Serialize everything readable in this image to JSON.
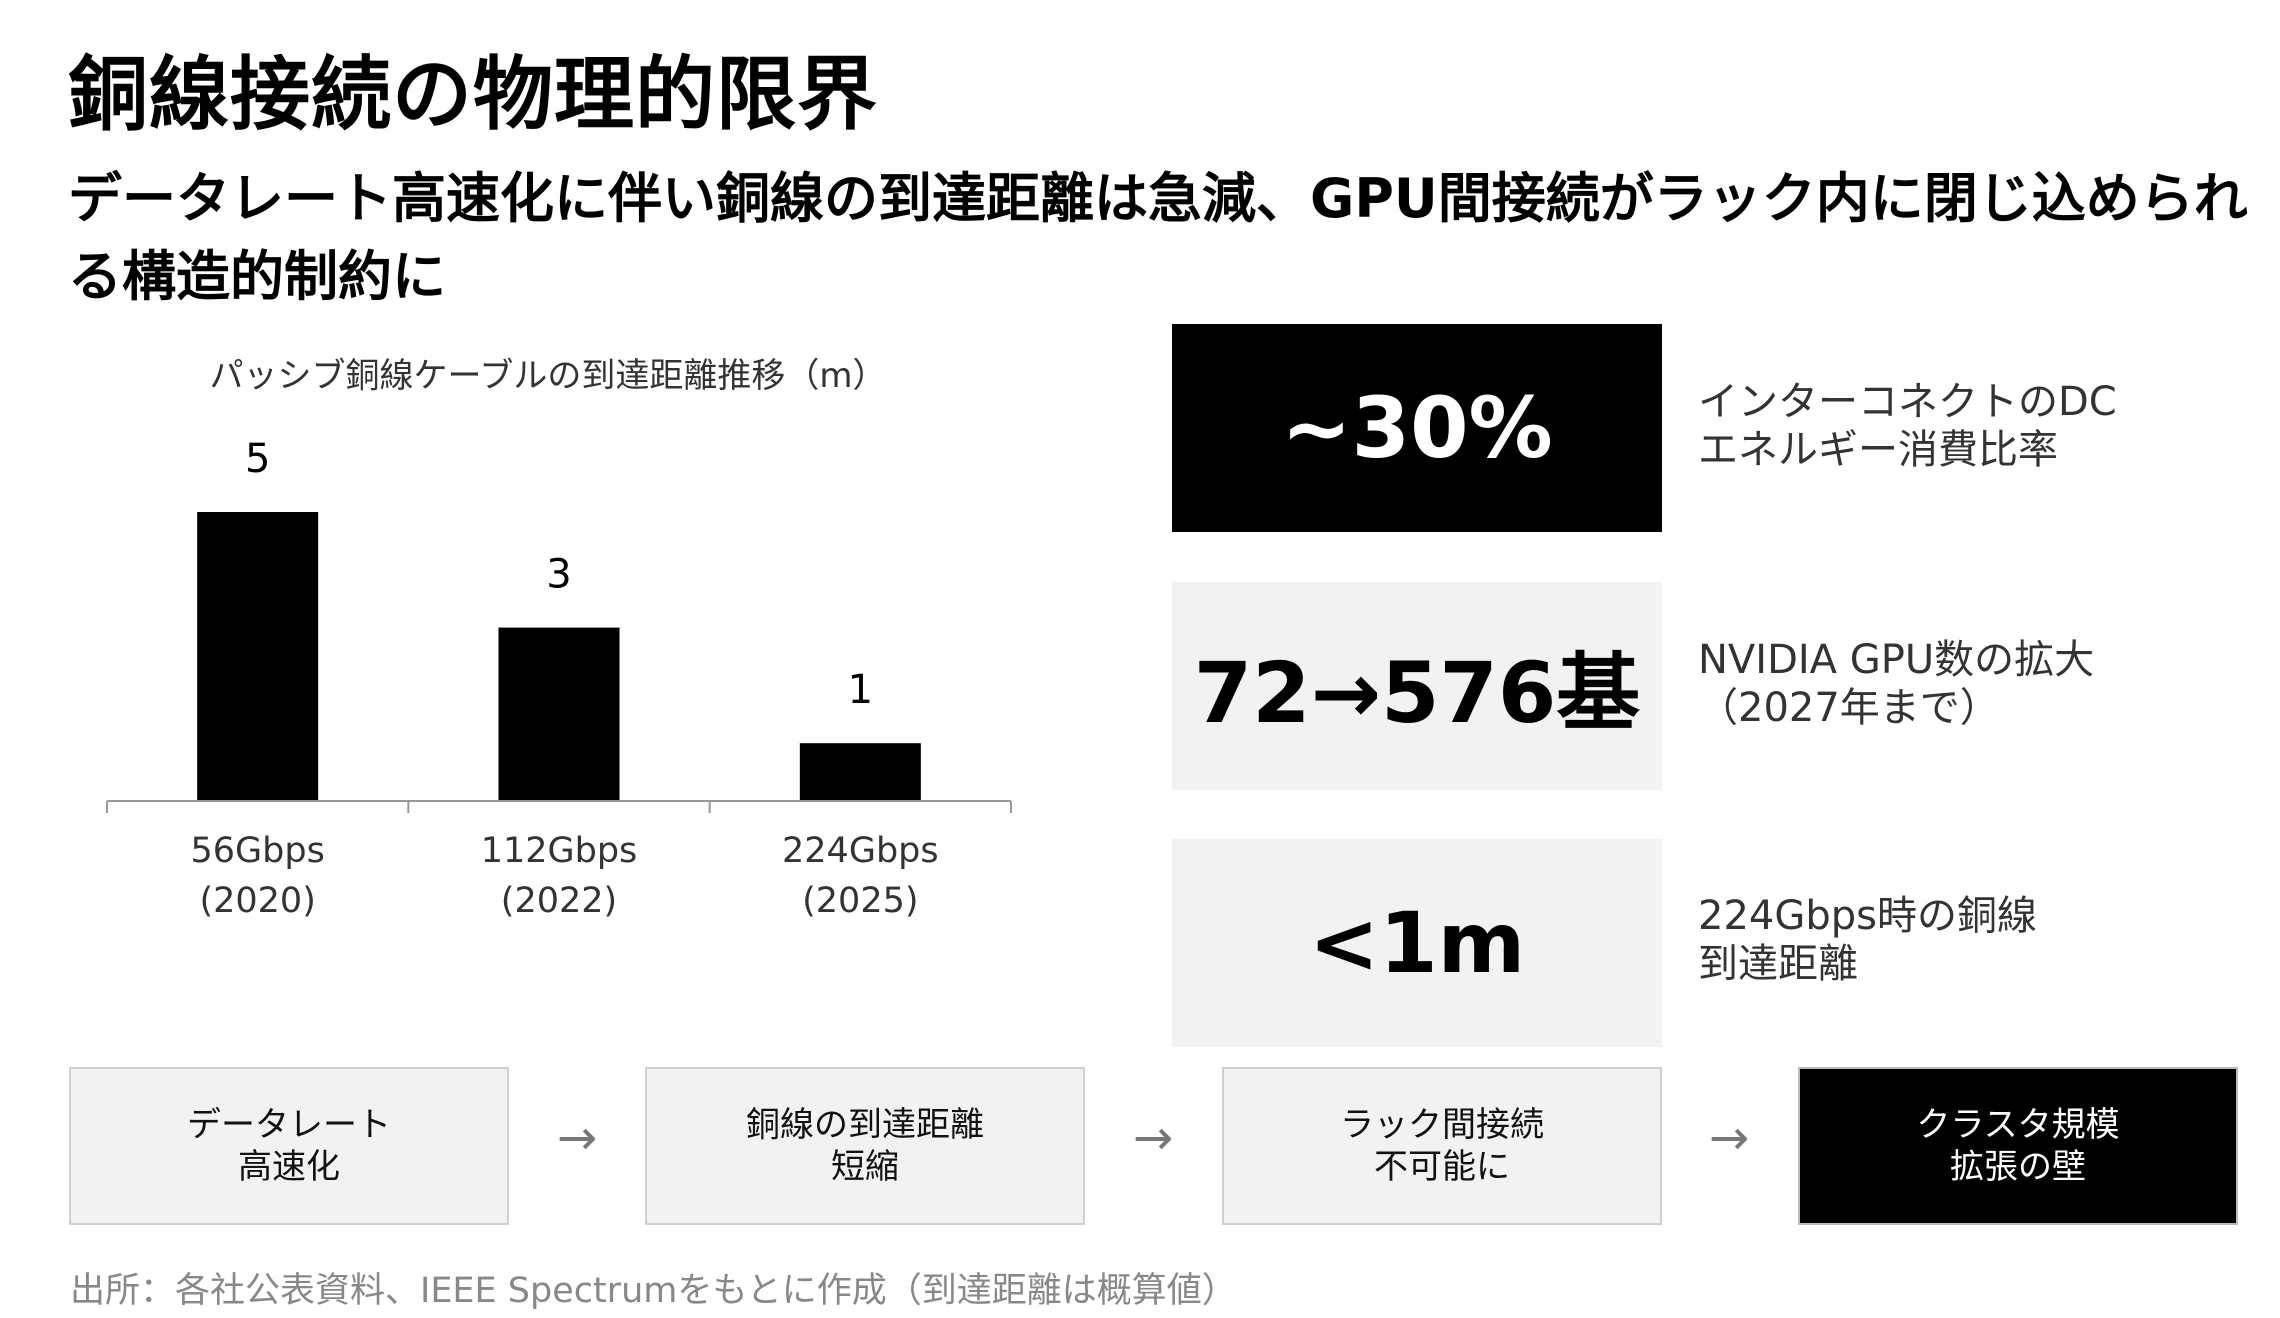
{
  "title": "銅線接続の物理的限界",
  "subtitle": "データレート高速化に伴い銅線の到達距離は急減、GPU間接続がラック内に閉じ込められる構造的制約に",
  "chart_data": {
    "type": "bar",
    "title": "パッシブ銅線ケーブルの到達距離推移（m）",
    "categories": [
      [
        "56Gbps",
        "(2020)"
      ],
      [
        "112Gbps",
        "(2022)"
      ],
      [
        "224Gbps",
        "(2025)"
      ]
    ],
    "values": [
      5,
      3,
      1
    ],
    "value_labels": [
      "5",
      "3",
      "1"
    ],
    "ylim": [
      0,
      5.5
    ],
    "grid": false,
    "bar_color": "#000000",
    "axis_color": "#999999"
  },
  "stats": [
    {
      "value": "~30%",
      "desc": "インターコネクトのDC\nエネルギー消費比率"
    },
    {
      "value": "72→576基",
      "desc": "NVIDIA GPU数の拡大\n（2027年まで）"
    },
    {
      "value": "<1m",
      "desc": "224Gbps時の銅線\n到達距離"
    }
  ],
  "flow": [
    {
      "line1": "データレート",
      "line2": "高速化"
    },
    {
      "line1": "銅線の到達距離",
      "line2": "短縮"
    },
    {
      "line1": "ラック間接続",
      "line2": "不可能に"
    },
    {
      "line1": "クラスタ規模",
      "line2": "拡張の壁"
    }
  ],
  "arrow_glyph": "→",
  "footer": "出所：各社公表資料、IEEE Spectrumをもとに作成（到達距離は概算値）"
}
